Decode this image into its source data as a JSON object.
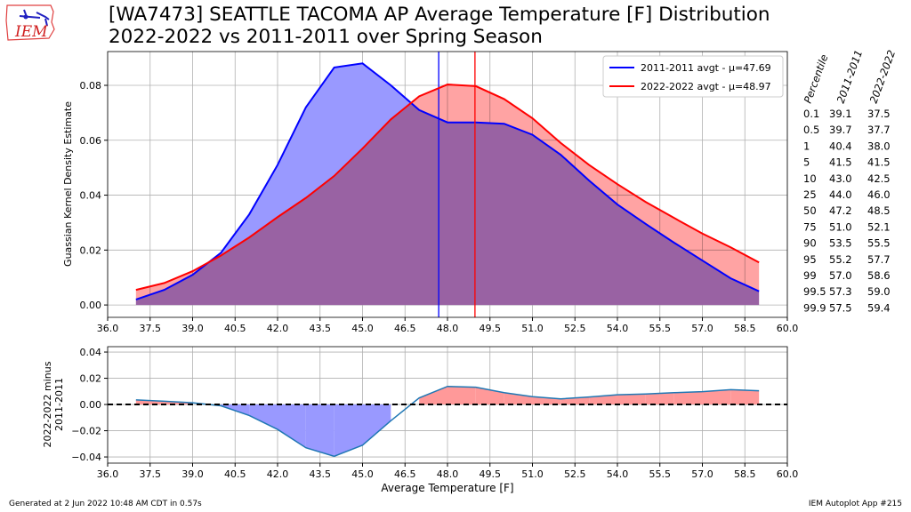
{
  "logo_text": "IEM",
  "title_line1": "[WA7473] SEATTLE TACOMA AP Average Temperature [F] Distribution",
  "title_line2": "2022-2022 vs 2011-2011 over Spring Season",
  "footer_left": "Generated at 2 Jun 2022 10:48 AM CDT in 0.57s",
  "footer_right": "IEM Autoplot App #215",
  "table": {
    "headers": [
      "Percentile",
      "2011-2011",
      "2022-2022"
    ],
    "rows": [
      [
        "0.1",
        "39.1",
        "37.5"
      ],
      [
        "0.5",
        "39.7",
        "37.7"
      ],
      [
        "1",
        "40.4",
        "38.0"
      ],
      [
        "5",
        "41.5",
        "41.5"
      ],
      [
        "10",
        "43.0",
        "42.5"
      ],
      [
        "25",
        "44.0",
        "46.0"
      ],
      [
        "50",
        "47.2",
        "48.5"
      ],
      [
        "75",
        "51.0",
        "52.1"
      ],
      [
        "90",
        "53.5",
        "55.5"
      ],
      [
        "95",
        "55.2",
        "57.7"
      ],
      [
        "99",
        "57.0",
        "58.6"
      ],
      [
        "99.5",
        "57.3",
        "59.0"
      ],
      [
        "99.9",
        "57.5",
        "59.4"
      ]
    ]
  },
  "chart_data": [
    {
      "type": "area",
      "ylabel": "Guassian Kernel Density Estimate",
      "xlim": [
        36,
        60
      ],
      "ylim": [
        -0.0045,
        0.0923
      ],
      "xticks": [
        "36.0",
        "37.5",
        "39.0",
        "40.5",
        "42.0",
        "43.5",
        "45.0",
        "46.5",
        "48.0",
        "49.5",
        "51.0",
        "52.5",
        "54.0",
        "55.5",
        "57.0",
        "58.5",
        "60.0"
      ],
      "yticks": [
        "0.00",
        "0.02",
        "0.04",
        "0.06",
        "0.08"
      ],
      "x": [
        37,
        38,
        39,
        40,
        41,
        42,
        43,
        44,
        45,
        46,
        47,
        48,
        49,
        50,
        51,
        52,
        53,
        54,
        55,
        56,
        57,
        58,
        59
      ],
      "series": [
        {
          "name": "2011-2011 avgt - μ=47.69",
          "color": "#0000ff",
          "fill": "#9999ff",
          "mean": 47.69,
          "values": [
            0.002,
            0.0055,
            0.011,
            0.019,
            0.033,
            0.051,
            0.072,
            0.0865,
            0.088,
            0.08,
            0.071,
            0.0665,
            0.0665,
            0.066,
            0.062,
            0.0547,
            0.0453,
            0.0366,
            0.0295,
            0.0227,
            0.0162,
            0.0097,
            0.005
          ]
        },
        {
          "name": "2022-2022 avgt - μ=48.97",
          "color": "#ff0000",
          "fill": "#ff9999",
          "mean": 48.97,
          "values": [
            0.0055,
            0.008,
            0.0123,
            0.018,
            0.0246,
            0.032,
            0.039,
            0.047,
            0.057,
            0.0676,
            0.076,
            0.0803,
            0.0797,
            0.075,
            0.068,
            0.059,
            0.051,
            0.044,
            0.0375,
            0.0317,
            0.026,
            0.021,
            0.0155
          ]
        }
      ],
      "legend": "top-right",
      "grid": true
    },
    {
      "type": "line",
      "xlabel": "Average Temperature [F]",
      "ylabel": [
        "2022-2022 minus",
        "2011-2011"
      ],
      "ylim": [
        -0.0447,
        0.0441
      ],
      "yticks": [
        "−0.04",
        "−0.02",
        "0.00",
        "0.02",
        "0.04"
      ],
      "series_note": "difference of above series",
      "grid": true
    }
  ]
}
